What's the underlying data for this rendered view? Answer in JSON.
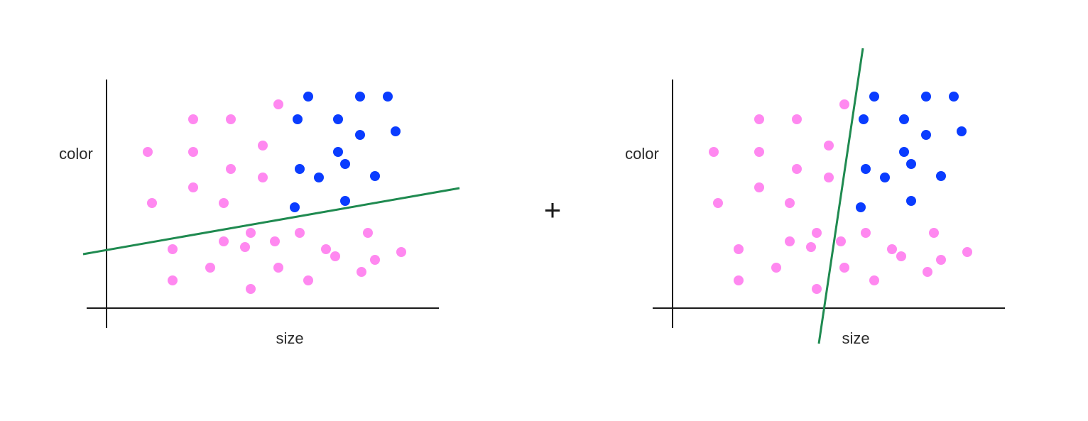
{
  "plus_symbol": "+",
  "colors": {
    "axis": "#1a1a1a",
    "divider": "#1f8a50",
    "pink": "#ff88f0",
    "blue": "#0a3cff",
    "text": "#2b2b2b"
  },
  "panels": [
    {
      "id": "left",
      "x_label": "size",
      "y_label": "color",
      "divider_orientation": "shallow"
    },
    {
      "id": "right",
      "x_label": "size",
      "y_label": "color",
      "divider_orientation": "steep"
    }
  ]
}
